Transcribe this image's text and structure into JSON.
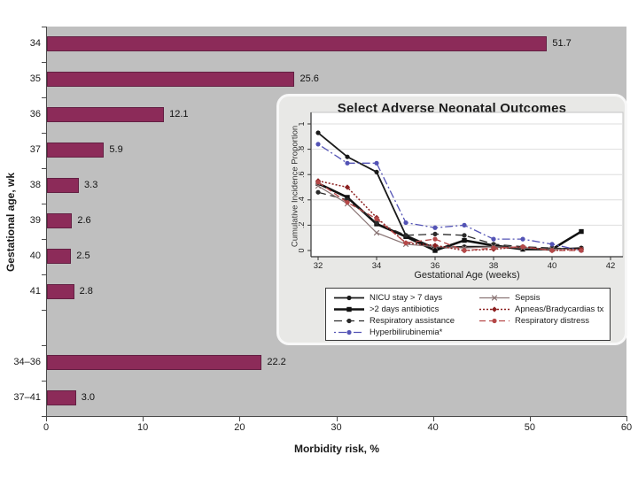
{
  "chart_data": [
    {
      "type": "bar",
      "orientation": "horizontal",
      "ylabel": "Gestational age, wk",
      "xlabel": "Morbidity risk, %",
      "xlim": [
        0,
        60
      ],
      "x_ticks": [
        0,
        10,
        20,
        30,
        40,
        50,
        60
      ],
      "grid": false,
      "plot_bg": "#bfbfbf",
      "bar_color": "#8c2b59",
      "categories": [
        "34",
        "35",
        "36",
        "37",
        "38",
        "39",
        "40",
        "41",
        "34–36",
        "37–41"
      ],
      "values": [
        51.7,
        25.6,
        12.1,
        5.9,
        3.3,
        2.6,
        2.5,
        2.8,
        22.2,
        3.0
      ],
      "value_labels": [
        "51.7",
        "25.6",
        "12.1",
        "5.9",
        "3.3",
        "2.6",
        "2.5",
        "2.8",
        "22.2",
        "3.0"
      ],
      "slots": [
        0,
        1,
        2,
        3,
        4,
        5,
        6,
        7,
        9,
        10
      ]
    },
    {
      "type": "line",
      "title": "Select Adverse Neonatal Outcomes",
      "xlabel": "Gestational Age (weeks)",
      "ylabel": "Cumulative Incidence Proportion",
      "xlim": [
        31.7,
        42.4
      ],
      "ylim": [
        0,
        1.1
      ],
      "x_ticks": [
        32,
        34,
        36,
        38,
        40,
        42
      ],
      "y_ticks": [
        0,
        0.2,
        0.4,
        0.6,
        0.8,
        1
      ],
      "y_tick_labels": [
        "0",
        ".2",
        ".4",
        ".6",
        ".8",
        "1"
      ],
      "grid": "horizontal",
      "legend_position": "bottom",
      "legend_layout": [
        0,
        4,
        1,
        5,
        2,
        6,
        3
      ],
      "x": [
        32,
        33,
        34,
        35,
        36,
        37,
        38,
        39,
        40,
        41
      ],
      "series": [
        {
          "name": "NICU stay > 7 days",
          "color": "#1a1a1a",
          "dash": "",
          "width": 1.8,
          "marker": "circle",
          "values": [
            0.93,
            0.74,
            0.62,
            0.12,
            0.02,
            0.03,
            0.03,
            0.02,
            0.01,
            0.02
          ]
        },
        {
          "name": ">2 days antibiotics",
          "color": "#111111",
          "dash": "",
          "width": 2.6,
          "marker": "square",
          "values": [
            0.53,
            0.42,
            0.21,
            0.11,
            0.0,
            0.08,
            0.04,
            0.01,
            0.01,
            0.15
          ]
        },
        {
          "name": "Respiratory assistance",
          "color": "#2b2b2b",
          "dash": "9,5",
          "width": 1.3,
          "marker": "circle",
          "values": [
            0.46,
            0.4,
            0.22,
            0.12,
            0.13,
            0.12,
            0.05,
            0.03,
            0.02,
            0.01
          ]
        },
        {
          "name": "Hyperbilirubinemia*",
          "color": "#5353b5",
          "dash": "2,3,9,3",
          "width": 1.3,
          "marker": "circle",
          "values": [
            0.84,
            0.69,
            0.69,
            0.22,
            0.18,
            0.2,
            0.09,
            0.09,
            0.05,
            0.0
          ]
        },
        {
          "name": "Sepsis",
          "color": "#8a7575",
          "dash": "",
          "width": 1.2,
          "marker": "x",
          "values": [
            0.51,
            0.37,
            0.14,
            0.05,
            0.03,
            0.02,
            0.03,
            0.02,
            0.01,
            0.01
          ]
        },
        {
          "name": "Apneas/Bradycardias tx",
          "color": "#8b1f1f",
          "dash": "2,2",
          "width": 1.5,
          "marker": "diamond",
          "values": [
            0.55,
            0.5,
            0.26,
            0.06,
            0.04,
            0.0,
            0.01,
            0.03,
            0.0,
            0.01
          ]
        },
        {
          "name": "Respiratory distress",
          "color": "#b54848",
          "dash": "7,4",
          "width": 1.3,
          "marker": "circle",
          "values": [
            0.54,
            0.38,
            0.25,
            0.06,
            0.09,
            0.0,
            0.02,
            0.03,
            0.0,
            0.0
          ]
        }
      ]
    }
  ]
}
